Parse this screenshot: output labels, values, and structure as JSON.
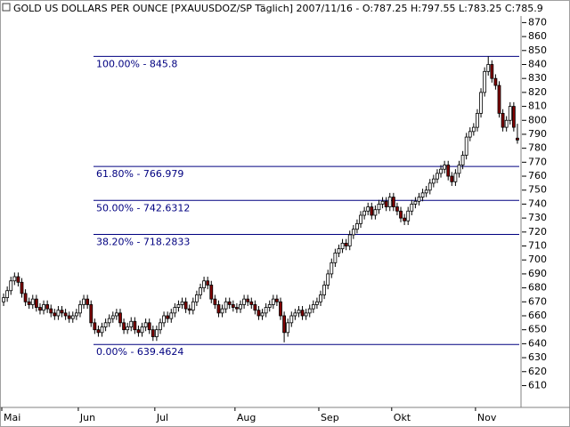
{
  "chart_data": {
    "type": "candlestick",
    "title": "GOLD US DOLLARS PER OUNCE [PXAUUSDOZ/SP  Täglich] 2007/11/16 - O:787.25 H:797.55 L:783.25 C:785.9",
    "up_color": "#ffffff",
    "down_color": "#800000",
    "outline_color": "#000000",
    "fib_color": "#000080",
    "ylim": [
      595,
      883
    ],
    "yticks": [
      610,
      620,
      630,
      640,
      650,
      660,
      670,
      680,
      690,
      700,
      710,
      720,
      730,
      740,
      750,
      760,
      770,
      780,
      790,
      800,
      810,
      820,
      830,
      840,
      850,
      860,
      870
    ],
    "fib_levels": [
      {
        "value": 845.8,
        "label": "100.00% - 845.8"
      },
      {
        "value": 766.979,
        "label": "61.80% - 766.979"
      },
      {
        "value": 742.6312,
        "label": "50.00% - 742.6312"
      },
      {
        "value": 718.2833,
        "label": "38.20% - 718.2833"
      },
      {
        "value": 639.4624,
        "label": "0.00% - 639.4624"
      }
    ],
    "categories": [
      "Mai",
      null,
      null,
      null,
      null,
      null,
      null,
      null,
      null,
      null,
      null,
      null,
      null,
      null,
      null,
      null,
      null,
      null,
      null,
      null,
      null,
      "Jun",
      null,
      null,
      null,
      null,
      null,
      null,
      null,
      null,
      null,
      null,
      null,
      null,
      null,
      null,
      null,
      null,
      null,
      null,
      null,
      null,
      "Jul",
      null,
      null,
      null,
      null,
      null,
      null,
      null,
      null,
      null,
      null,
      null,
      null,
      null,
      null,
      null,
      null,
      null,
      null,
      null,
      null,
      null,
      "Aug",
      null,
      null,
      null,
      null,
      null,
      null,
      null,
      null,
      null,
      null,
      null,
      null,
      null,
      null,
      null,
      null,
      null,
      null,
      null,
      null,
      null,
      null,
      "Sep",
      null,
      null,
      null,
      null,
      null,
      null,
      null,
      null,
      null,
      null,
      null,
      null,
      null,
      null,
      null,
      null,
      null,
      null,
      null,
      "Okt",
      null,
      null,
      null,
      null,
      null,
      null,
      null,
      null,
      null,
      null,
      null,
      null,
      null,
      null,
      null,
      null,
      null,
      null,
      null,
      null,
      null,
      null,
      "Nov",
      null,
      null,
      null,
      null,
      null,
      null,
      null,
      null,
      null,
      null,
      null
    ],
    "open": [
      670,
      673,
      678,
      685,
      688,
      684,
      676,
      670,
      668,
      672,
      666,
      664,
      668,
      665,
      662,
      660,
      664,
      662,
      660,
      658,
      660,
      662,
      668,
      672,
      668,
      655,
      650,
      648,
      652,
      655,
      658,
      660,
      662,
      655,
      650,
      652,
      656,
      650,
      648,
      652,
      655,
      650,
      645,
      650,
      655,
      660,
      658,
      662,
      666,
      668,
      670,
      665,
      664,
      670,
      675,
      680,
      685,
      682,
      672,
      668,
      662,
      665,
      670,
      668,
      666,
      665,
      668,
      672,
      670,
      668,
      664,
      660,
      662,
      666,
      668,
      672,
      670,
      660,
      648,
      655,
      660,
      662,
      664,
      660,
      662,
      665,
      668,
      670,
      675,
      682,
      690,
      698,
      705,
      708,
      712,
      710,
      718,
      722,
      726,
      732,
      735,
      738,
      732,
      736,
      740,
      742,
      738,
      745,
      738,
      735,
      730,
      728,
      735,
      740,
      742,
      745,
      748,
      750,
      755,
      758,
      762,
      765,
      768,
      760,
      756,
      762,
      768,
      775,
      788,
      792,
      795,
      805,
      820,
      835,
      840,
      830,
      825,
      805,
      795,
      800,
      810,
      787.25
    ],
    "high": [
      676,
      681,
      688,
      691,
      691,
      687,
      679,
      673,
      675,
      675,
      669,
      671,
      671,
      668,
      665,
      667,
      667,
      665,
      663,
      663,
      665,
      671,
      675,
      675,
      671,
      658,
      653,
      655,
      658,
      661,
      663,
      665,
      665,
      658,
      655,
      659,
      659,
      653,
      655,
      658,
      658,
      653,
      653,
      658,
      663,
      663,
      665,
      669,
      671,
      673,
      673,
      668,
      673,
      678,
      683,
      688,
      688,
      685,
      675,
      671,
      668,
      673,
      673,
      671,
      669,
      671,
      675,
      675,
      673,
      671,
      667,
      665,
      669,
      671,
      675,
      675,
      673,
      663,
      658,
      663,
      665,
      667,
      667,
      665,
      668,
      671,
      673,
      678,
      685,
      693,
      701,
      708,
      711,
      715,
      715,
      721,
      725,
      729,
      735,
      738,
      741,
      741,
      739,
      743,
      745,
      745,
      748,
      748,
      741,
      738,
      733,
      738,
      743,
      745,
      748,
      751,
      753,
      758,
      761,
      765,
      768,
      771,
      771,
      763,
      765,
      771,
      778,
      791,
      795,
      798,
      808,
      823,
      838,
      845.8,
      843,
      833,
      828,
      808,
      803,
      813,
      813,
      797.55
    ],
    "low": [
      667,
      670,
      675,
      682,
      681,
      673,
      667,
      665,
      665,
      663,
      661,
      661,
      662,
      659,
      657,
      657,
      659,
      657,
      655,
      655,
      657,
      659,
      665,
      665,
      652,
      647,
      645,
      645,
      649,
      652,
      655,
      657,
      652,
      647,
      647,
      649,
      647,
      645,
      645,
      649,
      647,
      642,
      642,
      647,
      652,
      655,
      655,
      659,
      663,
      665,
      662,
      661,
      661,
      667,
      672,
      677,
      679,
      669,
      665,
      659,
      659,
      662,
      665,
      663,
      662,
      662,
      665,
      667,
      665,
      661,
      657,
      657,
      659,
      663,
      665,
      667,
      657,
      641,
      645,
      652,
      657,
      659,
      657,
      657,
      659,
      662,
      665,
      667,
      672,
      679,
      687,
      695,
      702,
      705,
      707,
      707,
      715,
      719,
      723,
      729,
      732,
      729,
      729,
      733,
      737,
      735,
      735,
      735,
      732,
      727,
      725,
      725,
      732,
      737,
      739,
      742,
      745,
      747,
      752,
      755,
      759,
      762,
      757,
      753,
      753,
      759,
      765,
      772,
      785,
      789,
      792,
      802,
      817,
      832,
      827,
      822,
      802,
      792,
      792,
      797,
      792,
      783.25
    ],
    "close": [
      673,
      678,
      685,
      688,
      684,
      676,
      670,
      668,
      672,
      666,
      664,
      668,
      665,
      662,
      660,
      664,
      662,
      660,
      658,
      660,
      662,
      668,
      672,
      668,
      655,
      650,
      648,
      652,
      655,
      658,
      660,
      662,
      655,
      650,
      652,
      656,
      650,
      648,
      652,
      655,
      650,
      645,
      650,
      655,
      660,
      658,
      662,
      666,
      668,
      670,
      665,
      664,
      670,
      675,
      680,
      685,
      682,
      672,
      668,
      662,
      665,
      670,
      668,
      666,
      665,
      668,
      672,
      670,
      668,
      664,
      660,
      662,
      666,
      668,
      672,
      670,
      660,
      648,
      655,
      660,
      662,
      664,
      660,
      662,
      665,
      668,
      670,
      675,
      682,
      690,
      698,
      705,
      708,
      712,
      710,
      718,
      722,
      726,
      732,
      735,
      738,
      732,
      736,
      740,
      742,
      738,
      745,
      738,
      735,
      730,
      728,
      735,
      740,
      742,
      745,
      748,
      750,
      755,
      758,
      762,
      765,
      768,
      760,
      756,
      762,
      768,
      775,
      788,
      792,
      795,
      805,
      820,
      835,
      840,
      830,
      825,
      805,
      795,
      800,
      810,
      795,
      785.9
    ]
  }
}
